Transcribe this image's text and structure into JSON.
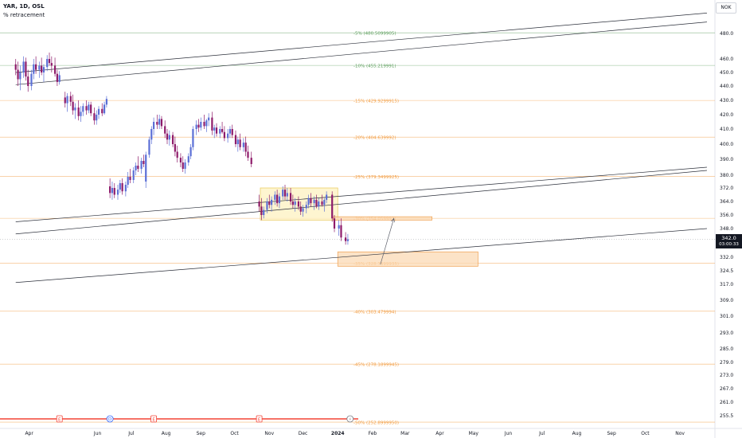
{
  "header": {
    "symbol_line": "YAR, 1D, OSL",
    "indicator": "% retracement"
  },
  "currency_button": "NOK",
  "current_price": {
    "value": "342.0",
    "countdown": "03:00:33",
    "price": 342.0
  },
  "colors": {
    "up_candle": "#5b6fd6",
    "down_candle": "#8e1b6a",
    "fib_green": "#5c9e5c",
    "fib_orange": "#f29b3f",
    "trendline": "#2a2e39",
    "zone_yellow_fill": "#fdf1c0",
    "zone_orange_fill": "#fbd9b4",
    "event_red": "#f44336"
  },
  "chart_data": {
    "type": "candlestick",
    "title": "YAR, 1D, OSL",
    "y_axis": {
      "min": 252,
      "max": 488,
      "ticks": [
        480.0,
        460.0,
        450.0,
        440.0,
        430.0,
        420.0,
        410.0,
        400.0,
        390.0,
        380.0,
        372.0,
        364.0,
        356.0,
        348.0,
        332.0,
        324.5,
        317.0,
        309.0,
        301.0,
        293.0,
        285.0,
        279.0,
        273.0,
        267.0,
        261.0,
        255.5
      ],
      "tick_labels": [
        "480.0",
        "460.0",
        "450.0",
        "440.0",
        "430.0",
        "420.0",
        "410.0",
        "400.0",
        "390.0",
        "380.0",
        "372.0",
        "364.0",
        "356.0",
        "348.0",
        "332.0",
        "324.5",
        "317.0",
        "309.0",
        "301.0",
        "293.0",
        "285.0",
        "279.0",
        "273.0",
        "267.0",
        "261.0",
        "255.5"
      ]
    },
    "x_axis": {
      "labels": [
        "Apr",
        "Jun",
        "Jul",
        "Aug",
        "Sep",
        "Oct",
        "Nov",
        "Dec",
        "2024",
        "Feb",
        "Mar",
        "Apr",
        "May",
        "Jun",
        "Jul",
        "Aug",
        "Sep",
        "Oct",
        "Nov"
      ],
      "label_dates": [
        "2023-04-01",
        "2023-06-01",
        "2023-07-01",
        "2023-08-01",
        "2023-09-01",
        "2023-10-01",
        "2023-11-01",
        "2023-12-01",
        "2024-01-01",
        "2024-02-01",
        "2024-03-01",
        "2024-04-01",
        "2024-05-01",
        "2024-06-01",
        "2024-07-01",
        "2024-08-01",
        "2024-09-01",
        "2024-10-01",
        "2024-11-01"
      ],
      "bold_labels": [
        "2024"
      ]
    },
    "fib_levels": [
      {
        "label": "-5% (480.5099905)",
        "value": 480.51,
        "color": "green"
      },
      {
        "label": "-10% (455.219991)",
        "value": 455.22,
        "color": "green"
      },
      {
        "label": "-15% (429.9299915)",
        "value": 429.93,
        "color": "orange"
      },
      {
        "label": "-20% (404.639992)",
        "value": 404.64,
        "color": "orange"
      },
      {
        "label": "-25% (379.3499925)",
        "value": 379.35,
        "color": "orange"
      },
      {
        "label": "-30% (354.059993)",
        "value": 354.06,
        "color": "orange"
      },
      {
        "label": "-35% (328.7699935)",
        "value": 328.77,
        "color": "orange"
      },
      {
        "label": "-40% (303.479994)",
        "value": 303.48,
        "color": "orange"
      },
      {
        "label": "-45% (278.1899945)",
        "value": 278.19,
        "color": "orange"
      },
      {
        "label": "-50% (252.8999950)",
        "value": 252.9,
        "color": "orange"
      }
    ],
    "trendlines": [
      {
        "from": [
          "2023-03-20",
          441
        ],
        "to": [
          "2024-11-25",
          489
        ]
      },
      {
        "from": [
          "2023-03-20",
          450
        ],
        "to": [
          "2024-11-25",
          496
        ]
      },
      {
        "from": [
          "2023-03-20",
          352
        ],
        "to": [
          "2024-11-25",
          385
        ]
      },
      {
        "from": [
          "2023-03-20",
          345
        ],
        "to": [
          "2024-11-25",
          383
        ]
      },
      {
        "from": [
          "2023-03-20",
          318
        ],
        "to": [
          "2024-11-25",
          348
        ]
      }
    ],
    "zones": [
      {
        "from": [
          "2023-10-24",
          372
        ],
        "to": [
          "2024-01-01",
          353
        ],
        "style": "yellow"
      },
      {
        "from": [
          "2023-12-28",
          355
        ],
        "to": [
          "2024-03-25",
          353
        ],
        "style": "orange"
      },
      {
        "from": [
          "2024-01-01",
          335
        ],
        "to": [
          "2024-05-05",
          327
        ],
        "style": "orange"
      }
    ],
    "arrow": {
      "from": [
        "2024-02-08",
        328
      ],
      "to": [
        "2024-02-20",
        354
      ]
    },
    "candles": [
      {
        "date": "2023-03-20",
        "o": 456,
        "h": 460,
        "l": 448,
        "c": 452
      },
      {
        "date": "2023-03-22",
        "o": 452,
        "h": 458,
        "l": 440,
        "c": 445
      },
      {
        "date": "2023-03-24",
        "o": 445,
        "h": 455,
        "l": 437,
        "c": 450
      },
      {
        "date": "2023-03-27",
        "o": 450,
        "h": 462,
        "l": 446,
        "c": 458
      },
      {
        "date": "2023-03-29",
        "o": 458,
        "h": 461,
        "l": 444,
        "c": 447
      },
      {
        "date": "2023-03-31",
        "o": 447,
        "h": 452,
        "l": 436,
        "c": 440
      },
      {
        "date": "2023-04-03",
        "o": 440,
        "h": 452,
        "l": 437,
        "c": 449
      },
      {
        "date": "2023-04-05",
        "o": 449,
        "h": 460,
        "l": 445,
        "c": 456
      },
      {
        "date": "2023-04-07",
        "o": 456,
        "h": 462,
        "l": 449,
        "c": 452
      },
      {
        "date": "2023-04-10",
        "o": 452,
        "h": 458,
        "l": 446,
        "c": 455
      },
      {
        "date": "2023-04-12",
        "o": 455,
        "h": 461,
        "l": 448,
        "c": 450
      },
      {
        "date": "2023-04-14",
        "o": 450,
        "h": 456,
        "l": 443,
        "c": 454
      },
      {
        "date": "2023-04-17",
        "o": 454,
        "h": 463,
        "l": 451,
        "c": 460
      },
      {
        "date": "2023-04-19",
        "o": 460,
        "h": 465,
        "l": 455,
        "c": 457
      },
      {
        "date": "2023-04-21",
        "o": 457,
        "h": 462,
        "l": 450,
        "c": 455
      },
      {
        "date": "2023-04-24",
        "o": 455,
        "h": 461,
        "l": 447,
        "c": 449
      },
      {
        "date": "2023-04-26",
        "o": 449,
        "h": 452,
        "l": 440,
        "c": 443
      },
      {
        "date": "2023-04-28",
        "o": 443,
        "h": 451,
        "l": 441,
        "c": 448
      },
      {
        "date": "2023-05-03",
        "o": 432,
        "h": 436,
        "l": 425,
        "c": 428
      },
      {
        "date": "2023-05-05",
        "o": 428,
        "h": 435,
        "l": 422,
        "c": 433
      },
      {
        "date": "2023-05-08",
        "o": 433,
        "h": 436,
        "l": 426,
        "c": 429
      },
      {
        "date": "2023-05-10",
        "o": 429,
        "h": 434,
        "l": 420,
        "c": 423
      },
      {
        "date": "2023-05-12",
        "o": 423,
        "h": 428,
        "l": 417,
        "c": 425
      },
      {
        "date": "2023-05-15",
        "o": 425,
        "h": 430,
        "l": 416,
        "c": 419
      },
      {
        "date": "2023-05-17",
        "o": 419,
        "h": 426,
        "l": 415,
        "c": 422
      },
      {
        "date": "2023-05-19",
        "o": 422,
        "h": 428,
        "l": 419,
        "c": 426
      },
      {
        "date": "2023-05-22",
        "o": 426,
        "h": 430,
        "l": 420,
        "c": 423
      },
      {
        "date": "2023-05-24",
        "o": 423,
        "h": 429,
        "l": 421,
        "c": 427
      },
      {
        "date": "2023-05-26",
        "o": 427,
        "h": 429,
        "l": 419,
        "c": 421
      },
      {
        "date": "2023-05-29",
        "o": 421,
        "h": 425,
        "l": 413,
        "c": 416
      },
      {
        "date": "2023-05-31",
        "o": 416,
        "h": 423,
        "l": 413,
        "c": 420
      },
      {
        "date": "2023-06-02",
        "o": 420,
        "h": 426,
        "l": 417,
        "c": 424
      },
      {
        "date": "2023-06-05",
        "o": 424,
        "h": 428,
        "l": 419,
        "c": 421
      },
      {
        "date": "2023-06-07",
        "o": 421,
        "h": 429,
        "l": 420,
        "c": 427
      },
      {
        "date": "2023-06-09",
        "o": 427,
        "h": 433,
        "l": 425,
        "c": 431
      },
      {
        "date": "2023-06-12",
        "o": 373,
        "h": 378,
        "l": 366,
        "c": 369
      },
      {
        "date": "2023-06-14",
        "o": 369,
        "h": 376,
        "l": 365,
        "c": 372
      },
      {
        "date": "2023-06-16",
        "o": 372,
        "h": 375,
        "l": 366,
        "c": 368
      },
      {
        "date": "2023-06-19",
        "o": 368,
        "h": 374,
        "l": 365,
        "c": 371
      },
      {
        "date": "2023-06-21",
        "o": 371,
        "h": 377,
        "l": 369,
        "c": 375
      },
      {
        "date": "2023-06-23",
        "o": 375,
        "h": 378,
        "l": 368,
        "c": 370
      },
      {
        "date": "2023-06-26",
        "o": 370,
        "h": 376,
        "l": 367,
        "c": 374
      },
      {
        "date": "2023-06-28",
        "o": 374,
        "h": 382,
        "l": 372,
        "c": 379
      },
      {
        "date": "2023-06-30",
        "o": 379,
        "h": 384,
        "l": 375,
        "c": 377
      },
      {
        "date": "2023-07-03",
        "o": 377,
        "h": 385,
        "l": 375,
        "c": 383
      },
      {
        "date": "2023-07-05",
        "o": 383,
        "h": 388,
        "l": 380,
        "c": 386
      },
      {
        "date": "2023-07-07",
        "o": 386,
        "h": 392,
        "l": 382,
        "c": 384
      },
      {
        "date": "2023-07-10",
        "o": 384,
        "h": 391,
        "l": 381,
        "c": 389
      },
      {
        "date": "2023-07-12",
        "o": 389,
        "h": 393,
        "l": 385,
        "c": 387
      },
      {
        "date": "2023-07-14",
        "o": 376,
        "h": 395,
        "l": 372,
        "c": 393
      },
      {
        "date": "2023-07-17",
        "o": 393,
        "h": 405,
        "l": 391,
        "c": 403
      },
      {
        "date": "2023-07-19",
        "o": 403,
        "h": 412,
        "l": 400,
        "c": 410
      },
      {
        "date": "2023-07-21",
        "o": 410,
        "h": 418,
        "l": 406,
        "c": 415
      },
      {
        "date": "2023-07-24",
        "o": 415,
        "h": 420,
        "l": 410,
        "c": 413
      },
      {
        "date": "2023-07-26",
        "o": 413,
        "h": 420,
        "l": 410,
        "c": 417
      },
      {
        "date": "2023-07-28",
        "o": 417,
        "h": 419,
        "l": 410,
        "c": 412
      },
      {
        "date": "2023-07-31",
        "o": 412,
        "h": 416,
        "l": 404,
        "c": 407
      },
      {
        "date": "2023-08-02",
        "o": 407,
        "h": 410,
        "l": 400,
        "c": 403
      },
      {
        "date": "2023-08-04",
        "o": 403,
        "h": 409,
        "l": 399,
        "c": 406
      },
      {
        "date": "2023-08-07",
        "o": 406,
        "h": 408,
        "l": 398,
        "c": 400
      },
      {
        "date": "2023-08-09",
        "o": 400,
        "h": 405,
        "l": 392,
        "c": 395
      },
      {
        "date": "2023-08-11",
        "o": 395,
        "h": 399,
        "l": 388,
        "c": 391
      },
      {
        "date": "2023-08-14",
        "o": 391,
        "h": 394,
        "l": 385,
        "c": 388
      },
      {
        "date": "2023-08-16",
        "o": 388,
        "h": 392,
        "l": 382,
        "c": 384
      },
      {
        "date": "2023-08-18",
        "o": 384,
        "h": 390,
        "l": 381,
        "c": 388
      },
      {
        "date": "2023-08-21",
        "o": 388,
        "h": 394,
        "l": 386,
        "c": 392
      },
      {
        "date": "2023-08-23",
        "o": 392,
        "h": 400,
        "l": 390,
        "c": 398
      },
      {
        "date": "2023-08-25",
        "o": 398,
        "h": 412,
        "l": 396,
        "c": 410
      },
      {
        "date": "2023-08-28",
        "o": 410,
        "h": 416,
        "l": 406,
        "c": 413
      },
      {
        "date": "2023-08-30",
        "o": 413,
        "h": 417,
        "l": 408,
        "c": 411
      },
      {
        "date": "2023-09-01",
        "o": 411,
        "h": 418,
        "l": 409,
        "c": 415
      },
      {
        "date": "2023-09-04",
        "o": 415,
        "h": 420,
        "l": 410,
        "c": 412
      },
      {
        "date": "2023-09-06",
        "o": 412,
        "h": 417,
        "l": 408,
        "c": 416
      },
      {
        "date": "2023-09-08",
        "o": 416,
        "h": 421,
        "l": 412,
        "c": 418
      },
      {
        "date": "2023-09-11",
        "o": 418,
        "h": 422,
        "l": 406,
        "c": 409
      },
      {
        "date": "2023-09-13",
        "o": 409,
        "h": 413,
        "l": 404,
        "c": 411
      },
      {
        "date": "2023-09-15",
        "o": 411,
        "h": 414,
        "l": 405,
        "c": 407
      },
      {
        "date": "2023-09-18",
        "o": 407,
        "h": 412,
        "l": 404,
        "c": 410
      },
      {
        "date": "2023-09-20",
        "o": 410,
        "h": 415,
        "l": 407,
        "c": 408
      },
      {
        "date": "2023-09-22",
        "o": 408,
        "h": 412,
        "l": 402,
        "c": 404
      },
      {
        "date": "2023-09-25",
        "o": 404,
        "h": 410,
        "l": 401,
        "c": 407
      },
      {
        "date": "2023-09-27",
        "o": 407,
        "h": 412,
        "l": 404,
        "c": 410
      },
      {
        "date": "2023-09-29",
        "o": 410,
        "h": 413,
        "l": 404,
        "c": 406
      },
      {
        "date": "2023-10-02",
        "o": 406,
        "h": 409,
        "l": 398,
        "c": 400
      },
      {
        "date": "2023-10-04",
        "o": 400,
        "h": 405,
        "l": 395,
        "c": 403
      },
      {
        "date": "2023-10-06",
        "o": 403,
        "h": 407,
        "l": 396,
        "c": 398
      },
      {
        "date": "2023-10-09",
        "o": 398,
        "h": 404,
        "l": 395,
        "c": 401
      },
      {
        "date": "2023-10-11",
        "o": 401,
        "h": 405,
        "l": 392,
        "c": 395
      },
      {
        "date": "2023-10-13",
        "o": 395,
        "h": 399,
        "l": 389,
        "c": 391
      },
      {
        "date": "2023-10-16",
        "o": 391,
        "h": 395,
        "l": 385,
        "c": 387
      },
      {
        "date": "2023-10-23",
        "o": 364,
        "h": 368,
        "l": 358,
        "c": 361
      },
      {
        "date": "2023-10-25",
        "o": 361,
        "h": 366,
        "l": 353,
        "c": 356
      },
      {
        "date": "2023-10-27",
        "o": 356,
        "h": 361,
        "l": 354,
        "c": 359
      },
      {
        "date": "2023-10-30",
        "o": 359,
        "h": 366,
        "l": 357,
        "c": 364
      },
      {
        "date": "2023-11-01",
        "o": 364,
        "h": 368,
        "l": 360,
        "c": 362
      },
      {
        "date": "2023-11-03",
        "o": 362,
        "h": 367,
        "l": 358,
        "c": 365
      },
      {
        "date": "2023-11-06",
        "o": 365,
        "h": 370,
        "l": 362,
        "c": 368
      },
      {
        "date": "2023-11-08",
        "o": 368,
        "h": 371,
        "l": 361,
        "c": 363
      },
      {
        "date": "2023-11-10",
        "o": 363,
        "h": 369,
        "l": 360,
        "c": 367
      },
      {
        "date": "2023-11-13",
        "o": 367,
        "h": 373,
        "l": 365,
        "c": 371
      },
      {
        "date": "2023-11-15",
        "o": 371,
        "h": 374,
        "l": 365,
        "c": 367
      },
      {
        "date": "2023-11-17",
        "o": 367,
        "h": 372,
        "l": 364,
        "c": 369
      },
      {
        "date": "2023-11-20",
        "o": 369,
        "h": 372,
        "l": 362,
        "c": 364
      },
      {
        "date": "2023-11-22",
        "o": 364,
        "h": 368,
        "l": 360,
        "c": 362
      },
      {
        "date": "2023-11-24",
        "o": 362,
        "h": 366,
        "l": 358,
        "c": 364
      },
      {
        "date": "2023-11-27",
        "o": 364,
        "h": 367,
        "l": 359,
        "c": 361
      },
      {
        "date": "2023-11-29",
        "o": 361,
        "h": 364,
        "l": 356,
        "c": 358
      },
      {
        "date": "2023-12-01",
        "o": 358,
        "h": 362,
        "l": 355,
        "c": 360
      },
      {
        "date": "2023-12-04",
        "o": 360,
        "h": 364,
        "l": 357,
        "c": 362
      },
      {
        "date": "2023-12-06",
        "o": 362,
        "h": 368,
        "l": 360,
        "c": 366
      },
      {
        "date": "2023-12-08",
        "o": 366,
        "h": 369,
        "l": 361,
        "c": 363
      },
      {
        "date": "2023-12-11",
        "o": 363,
        "h": 367,
        "l": 359,
        "c": 365
      },
      {
        "date": "2023-12-13",
        "o": 365,
        "h": 368,
        "l": 360,
        "c": 361
      },
      {
        "date": "2023-12-15",
        "o": 361,
        "h": 366,
        "l": 359,
        "c": 364
      },
      {
        "date": "2023-12-18",
        "o": 364,
        "h": 368,
        "l": 361,
        "c": 362
      },
      {
        "date": "2023-12-20",
        "o": 362,
        "h": 366,
        "l": 358,
        "c": 365
      },
      {
        "date": "2023-12-22",
        "o": 365,
        "h": 370,
        "l": 363,
        "c": 368
      },
      {
        "date": "2023-12-27",
        "o": 368,
        "h": 370,
        "l": 352,
        "c": 354
      },
      {
        "date": "2023-12-29",
        "o": 354,
        "h": 356,
        "l": 346,
        "c": 348
      },
      {
        "date": "2024-01-02",
        "o": 348,
        "h": 353,
        "l": 344,
        "c": 350
      },
      {
        "date": "2024-01-04",
        "o": 350,
        "h": 354,
        "l": 341,
        "c": 343
      },
      {
        "date": "2024-01-08",
        "o": 343,
        "h": 346,
        "l": 339,
        "c": 341
      },
      {
        "date": "2024-01-10",
        "o": 341,
        "h": 345,
        "l": 339,
        "c": 342
      }
    ],
    "events": [
      {
        "date": "2023-04-28",
        "label": "E",
        "kind": "earnings"
      },
      {
        "date": "2023-06-12",
        "label": "D",
        "kind": "dividend"
      },
      {
        "date": "2023-07-21",
        "label": "E",
        "kind": "earnings"
      },
      {
        "date": "2023-10-23",
        "label": "E",
        "kind": "earnings"
      },
      {
        "date": "2024-01-12",
        "label": "⚡",
        "kind": "flash"
      }
    ]
  }
}
